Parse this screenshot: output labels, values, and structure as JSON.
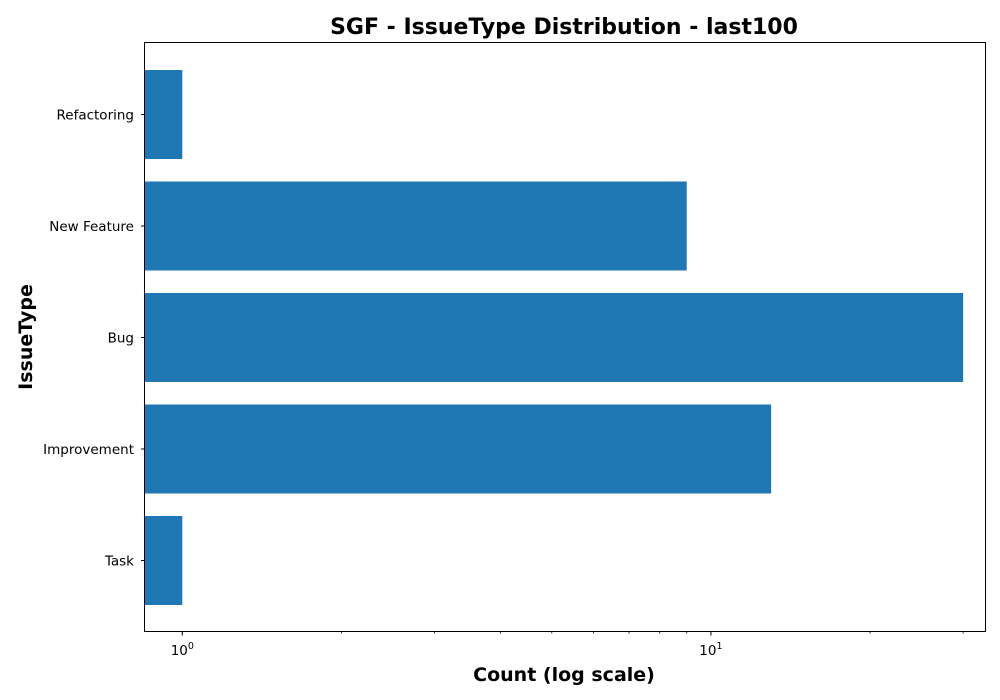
{
  "chart_data": {
    "type": "bar",
    "orientation": "horizontal",
    "title": "SGF - IssueType Distribution - last100",
    "xlabel": "Count (log scale)",
    "ylabel": "IssueType",
    "xscale": "log",
    "xlim": [
      0.85,
      33
    ],
    "categories": [
      "Task",
      "Improvement",
      "Bug",
      "New Feature",
      "Refactoring"
    ],
    "values": [
      1,
      13,
      30,
      9,
      1
    ],
    "bar_color": "#1f77b4",
    "grid": false,
    "xticks": [
      {
        "value": 1,
        "base": "10",
        "exponent": "0"
      },
      {
        "value": 10,
        "base": "10",
        "exponent": "1"
      }
    ]
  }
}
